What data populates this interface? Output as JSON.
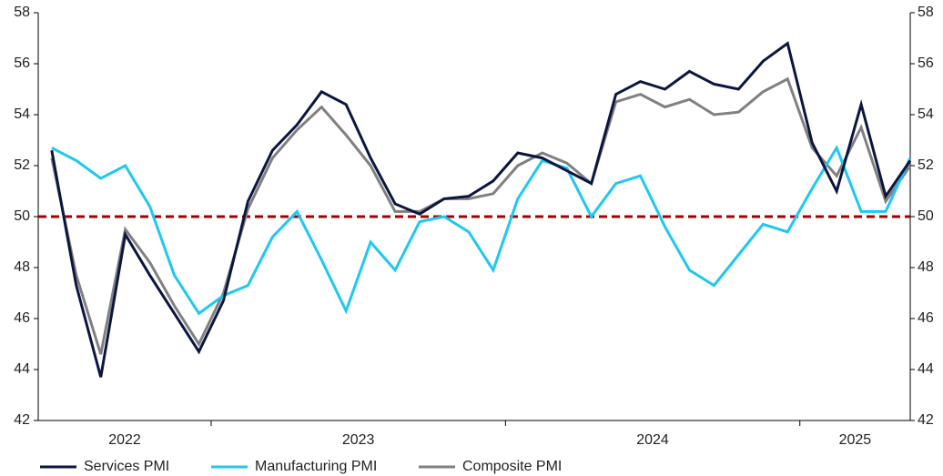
{
  "chart_data": {
    "type": "line",
    "categories": [
      "2022",
      "2022",
      "2022",
      "2022",
      "2022",
      "2022",
      "2022",
      "2023",
      "2023",
      "2023",
      "2023",
      "2023",
      "2023",
      "2023",
      "2023",
      "2023",
      "2023",
      "2023",
      "2023",
      "2024",
      "2024",
      "2024",
      "2024",
      "2024",
      "2024",
      "2024",
      "2024",
      "2024",
      "2024",
      "2024",
      "2024",
      "2025",
      "2025",
      "2025",
      "2025",
      "2025"
    ],
    "series": [
      {
        "name": "Services PMI",
        "color": "#0b1640",
        "values": [
          52.6,
          47.3,
          43.7,
          49.3,
          47.7,
          46.2,
          44.7,
          46.7,
          50.6,
          52.6,
          53.6,
          54.9,
          54.4,
          52.3,
          50.5,
          50.1,
          50.7,
          50.8,
          51.4,
          52.5,
          52.3,
          51.8,
          51.3,
          54.8,
          55.3,
          55.0,
          55.7,
          55.2,
          55.0,
          56.1,
          56.8,
          52.9,
          51.0,
          54.4,
          50.8,
          52.2
        ]
      },
      {
        "name": "Manufacturing PMI",
        "color": "#1ec8f0",
        "values": [
          52.7,
          52.2,
          51.5,
          52.0,
          50.4,
          47.7,
          46.2,
          46.9,
          47.3,
          49.2,
          50.2,
          48.3,
          46.3,
          49.0,
          47.9,
          49.8,
          50.0,
          49.4,
          47.9,
          50.7,
          52.2,
          51.9,
          50.0,
          51.3,
          51.6,
          49.6,
          47.9,
          47.3,
          48.5,
          49.7,
          49.4,
          51.1,
          52.7,
          50.2,
          50.2,
          52.3
        ]
      },
      {
        "name": "Composite PMI",
        "color": "#808080",
        "values": [
          52.3,
          47.7,
          44.6,
          49.5,
          48.2,
          46.5,
          45.0,
          47.0,
          50.3,
          52.3,
          53.4,
          54.3,
          53.2,
          52.0,
          50.2,
          50.2,
          50.7,
          50.7,
          50.9,
          52.0,
          52.5,
          52.1,
          51.3,
          54.5,
          54.8,
          54.3,
          54.6,
          54.0,
          54.1,
          54.9,
          55.4,
          52.7,
          51.6,
          53.5,
          50.6,
          52.0
        ]
      }
    ],
    "ylim": [
      42,
      58
    ],
    "yticks": [
      42,
      44,
      46,
      48,
      50,
      52,
      54,
      56,
      58
    ],
    "y2lim": [
      42,
      58
    ],
    "y2ticks": [
      42,
      44,
      46,
      48,
      50,
      52,
      54,
      56,
      58
    ],
    "reference_line": {
      "value": 50,
      "color": "#a00000"
    },
    "legend": "bottom"
  }
}
